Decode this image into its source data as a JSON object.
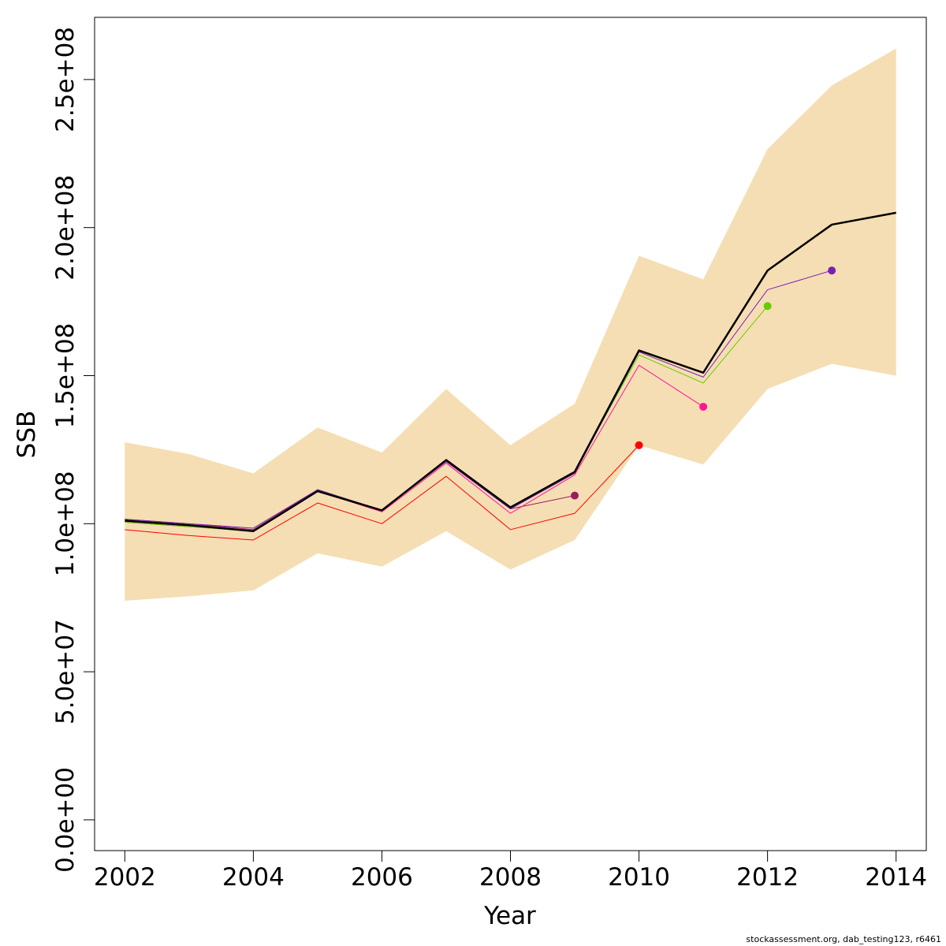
{
  "chart_data": {
    "type": "line",
    "title": "",
    "xlabel": "Year",
    "ylabel": "SSB",
    "xlim": [
      2001.53,
      2014.47
    ],
    "ylim": [
      -10400000,
      271000000
    ],
    "x_ticks": [
      2002,
      2004,
      2006,
      2008,
      2010,
      2012,
      2014
    ],
    "x_tick_labels": [
      "2002",
      "2004",
      "2006",
      "2008",
      "2010",
      "2012",
      "2014"
    ],
    "y_ticks": [
      0,
      50000000,
      100000000,
      150000000,
      200000000,
      250000000
    ],
    "y_tick_labels": [
      "0.0e+00",
      "5.0e+07",
      "1.0e+08",
      "1.5e+08",
      "2.0e+08",
      "2.5e+08"
    ],
    "grid": false,
    "legend": "none",
    "band": {
      "color": "#f5deb3",
      "x": [
        2002,
        2003,
        2004,
        2005,
        2006,
        2007,
        2008,
        2009,
        2010,
        2011,
        2012,
        2013,
        2014
      ],
      "lower": [
        74000000,
        75500000,
        77500000,
        90000000,
        85500000,
        97500000,
        84500000,
        94500000,
        126500000,
        120000000,
        145500000,
        154000000,
        150000000
      ],
      "upper": [
        127500000,
        123500000,
        117000000,
        132500000,
        124000000,
        145500000,
        126500000,
        140500000,
        190500000,
        182500000,
        226500000,
        248000000,
        260500000
      ]
    },
    "series": [
      {
        "color": "#ff0000",
        "width": 1,
        "x": [
          2002,
          2003,
          2004,
          2005,
          2006,
          2007,
          2008,
          2009,
          2010
        ],
        "values": [
          98000000,
          96000000,
          94500000,
          107000000,
          100000000,
          116000000,
          98000000,
          103500000,
          126500000
        ],
        "end_point": true
      },
      {
        "color": "#9b1b5f",
        "width": 1,
        "x": [
          2002,
          2003,
          2004,
          2005,
          2006,
          2007,
          2008,
          2009
        ],
        "values": [
          101500000,
          100000000,
          98000000,
          111500000,
          104500000,
          121000000,
          105000000,
          109500000
        ],
        "end_point": true
      },
      {
        "color": "#ff1493",
        "width": 1,
        "x": [
          2002,
          2003,
          2004,
          2005,
          2006,
          2007,
          2008,
          2009,
          2010,
          2011
        ],
        "values": [
          100500000,
          99000000,
          97500000,
          111000000,
          104000000,
          120500000,
          103500000,
          116500000,
          153500000,
          139500000
        ],
        "end_point": true
      },
      {
        "color": "#66cc00",
        "width": 1,
        "x": [
          2002,
          2003,
          2004,
          2005,
          2006,
          2007,
          2008,
          2009,
          2010,
          2011,
          2012
        ],
        "values": [
          100500000,
          99000000,
          97500000,
          111000000,
          104500000,
          121500000,
          105500000,
          117500000,
          157000000,
          147500000,
          173500000
        ],
        "end_point": true
      },
      {
        "color": "#7a1fb5",
        "width": 1,
        "x": [
          2002,
          2003,
          2004,
          2005,
          2006,
          2007,
          2008,
          2009,
          2010,
          2011,
          2012,
          2013
        ],
        "values": [
          101500000,
          100000000,
          98500000,
          111500000,
          104500000,
          121000000,
          105000000,
          117000000,
          158000000,
          149500000,
          179000000,
          185500000
        ],
        "end_point": true
      },
      {
        "color": "#000000",
        "width": 2.5,
        "x": [
          2002,
          2003,
          2004,
          2005,
          2006,
          2007,
          2008,
          2009,
          2010,
          2011,
          2012,
          2013,
          2014
        ],
        "values": [
          101000000,
          99500000,
          97500000,
          111000000,
          104500000,
          121500000,
          105500000,
          117500000,
          158500000,
          151000000,
          185500000,
          201000000,
          205000000
        ],
        "end_point": false
      }
    ]
  },
  "footer": "stockassessment.org, dab_testing123, r6461"
}
